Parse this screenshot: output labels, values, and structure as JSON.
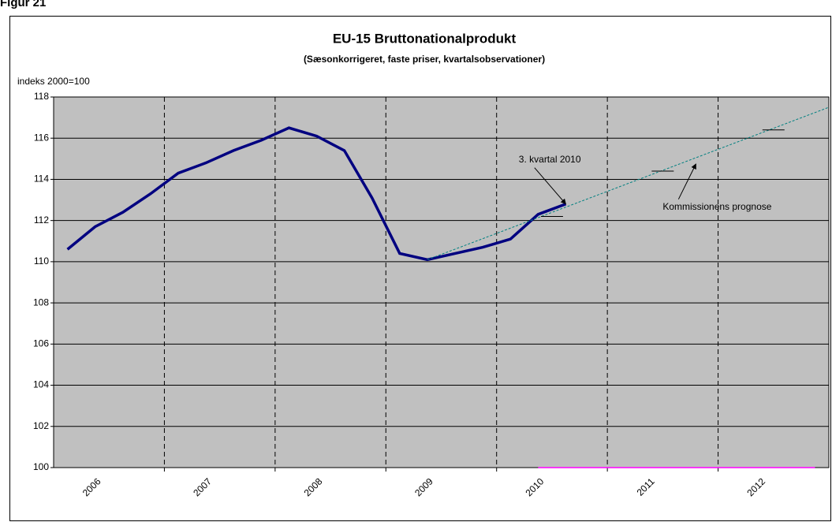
{
  "figure_label": "Figur 21",
  "chart_data": {
    "type": "line",
    "title": "EU-15 Bruttonationalprodukt",
    "subtitle": "(Sæsonkorrigeret, faste priser, kvartalsobservationer)",
    "y_label": "indeks 2000=100",
    "xlim": [
      2006,
      2013
    ],
    "xticks": [
      {
        "value": 2006.5,
        "label": "2006"
      },
      {
        "value": 2007.5,
        "label": "2007"
      },
      {
        "value": 2008.5,
        "label": "2008"
      },
      {
        "value": 2009.5,
        "label": "2009"
      },
      {
        "value": 2010.5,
        "label": "2010"
      },
      {
        "value": 2011.5,
        "label": "2011"
      },
      {
        "value": 2012.5,
        "label": "2012"
      }
    ],
    "xgridlines": [
      2007,
      2008,
      2009,
      2010,
      2011,
      2012
    ],
    "ylim": [
      100,
      118
    ],
    "yticks": [
      100,
      102,
      104,
      106,
      108,
      110,
      112,
      114,
      116,
      118
    ],
    "grid": true,
    "series": [
      {
        "style": "solid",
        "color": "#000080",
        "x": [
          2006.125,
          2006.375,
          2006.625,
          2006.875,
          2007.125,
          2007.375,
          2007.625,
          2007.875,
          2008.125,
          2008.375,
          2008.625,
          2008.875,
          2009.125,
          2009.375,
          2009.625,
          2009.875,
          2010.125,
          2010.375,
          2010.625
        ],
        "values": [
          110.6,
          111.7,
          112.4,
          113.3,
          114.3,
          114.8,
          115.4,
          115.9,
          116.5,
          116.1,
          115.4,
          113.1,
          110.4,
          110.1,
          110.4,
          110.7,
          111.1,
          112.3,
          112.8
        ]
      },
      {
        "style": "dashed",
        "color": "#008080",
        "x": [
          2009.375,
          2013
        ],
        "values": [
          110.1,
          117.5
        ]
      },
      {
        "style": "dash-marker",
        "color": "#000000",
        "x": [
          2010.5,
          2011.5,
          2012.5
        ],
        "values": [
          112.2,
          114.4,
          116.4
        ]
      },
      {
        "style": "solid-thin",
        "color": "#ff00ff",
        "x": [
          2010.375,
          2012.875
        ],
        "values": [
          100,
          100
        ]
      }
    ],
    "annotations": [
      {
        "text": "3. kvartal 2010",
        "x": 2010.2,
        "y": 114.95,
        "arrow_to": [
          2010.625,
          112.8
        ]
      },
      {
        "text": "Kommissionens prognose",
        "x": 2011.5,
        "y": 112.65,
        "arrow_to": [
          2011.8,
          114.75
        ]
      }
    ]
  }
}
